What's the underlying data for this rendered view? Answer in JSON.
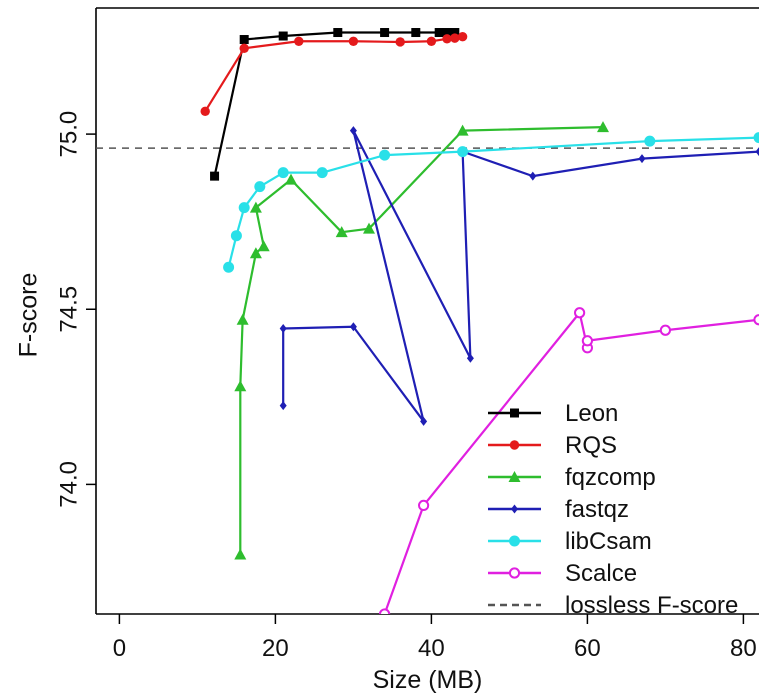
{
  "chart_data": {
    "type": "line",
    "title": "",
    "xlabel": "Size (MB)",
    "ylabel": "F-score",
    "xlim": [
      -3,
      82
    ],
    "ylim": [
      73.63,
      75.36
    ],
    "x_ticks": [
      0,
      20,
      40,
      60,
      80
    ],
    "x_tick_labels": [
      "0",
      "20",
      "40",
      "60",
      "80"
    ],
    "y_ticks": [
      74.0,
      74.5,
      75.0
    ],
    "y_tick_labels": [
      "74.0",
      "74.5",
      "75.0"
    ],
    "grid": false,
    "legend_position": "bottom-right",
    "reference_lines": [
      {
        "name": "lossless F-score",
        "y": 74.96,
        "color": "#555555",
        "style": "dashed"
      }
    ],
    "series": [
      {
        "name": "Leon",
        "color": "#000000",
        "marker": "square",
        "points": [
          {
            "x": 12.2,
            "y": 74.88
          },
          {
            "x": 16.0,
            "y": 75.27
          },
          {
            "x": 21.0,
            "y": 75.28
          },
          {
            "x": 28.0,
            "y": 75.29
          },
          {
            "x": 34.0,
            "y": 75.29
          },
          {
            "x": 38.0,
            "y": 75.29
          },
          {
            "x": 41.0,
            "y": 75.29
          },
          {
            "x": 42.0,
            "y": 75.29
          },
          {
            "x": 43.0,
            "y": 75.29
          }
        ]
      },
      {
        "name": "RQS",
        "color": "#e41a1c",
        "marker": "circle",
        "points": [
          {
            "x": 11.0,
            "y": 75.065
          },
          {
            "x": 16.0,
            "y": 75.245
          },
          {
            "x": 23.0,
            "y": 75.265
          },
          {
            "x": 30.0,
            "y": 75.265
          },
          {
            "x": 36.0,
            "y": 75.263
          },
          {
            "x": 40.0,
            "y": 75.265
          },
          {
            "x": 42.0,
            "y": 75.272
          },
          {
            "x": 43.0,
            "y": 75.274
          },
          {
            "x": 44.0,
            "y": 75.278
          }
        ]
      },
      {
        "name": "fqzcomp",
        "color": "#2ebd2e",
        "marker": "triangle",
        "points": [
          {
            "x": 15.5,
            "y": 73.8
          },
          {
            "x": 15.5,
            "y": 74.28
          },
          {
            "x": 15.8,
            "y": 74.47
          },
          {
            "x": 17.5,
            "y": 74.66
          },
          {
            "x": 18.5,
            "y": 74.68
          },
          {
            "x": 17.5,
            "y": 74.79
          },
          {
            "x": 22.0,
            "y": 74.87
          },
          {
            "x": 28.5,
            "y": 74.72
          },
          {
            "x": 32.0,
            "y": 74.73
          },
          {
            "x": 44.0,
            "y": 75.01
          },
          {
            "x": 62.0,
            "y": 75.02
          }
        ]
      },
      {
        "name": "fastqz",
        "color": "#1f1fb4",
        "marker": "diamond",
        "segments": [
          [
            {
              "x": 21.0,
              "y": 74.225
            },
            {
              "x": 21.0,
              "y": 74.445
            },
            {
              "x": 30.0,
              "y": 74.45
            },
            {
              "x": 39.0,
              "y": 74.18
            },
            {
              "x": 30.0,
              "y": 75.01
            },
            {
              "x": 45.0,
              "y": 74.36
            },
            {
              "x": 44.0,
              "y": 74.95
            },
            {
              "x": 53.0,
              "y": 74.88
            },
            {
              "x": 67.0,
              "y": 74.93
            },
            {
              "x": 82.0,
              "y": 74.95
            }
          ]
        ]
      },
      {
        "name": "libCsam",
        "color": "#29e0e8",
        "marker": "circle-filled",
        "points": [
          {
            "x": 14.0,
            "y": 74.62
          },
          {
            "x": 15.0,
            "y": 74.71
          },
          {
            "x": 16.0,
            "y": 74.79
          },
          {
            "x": 18.0,
            "y": 74.85
          },
          {
            "x": 21.0,
            "y": 74.89
          },
          {
            "x": 26.0,
            "y": 74.89
          },
          {
            "x": 34.0,
            "y": 74.94
          },
          {
            "x": 44.0,
            "y": 74.95
          },
          {
            "x": 68.0,
            "y": 74.98
          },
          {
            "x": 82.0,
            "y": 74.99
          }
        ]
      },
      {
        "name": "Scalce",
        "color": "#e020e0",
        "marker": "open-circle",
        "points": [
          {
            "x": 34.0,
            "y": 73.63
          },
          {
            "x": 39.0,
            "y": 73.94
          },
          {
            "x": 59.0,
            "y": 74.49
          },
          {
            "x": 60.0,
            "y": 74.39
          },
          {
            "x": 60.0,
            "y": 74.41
          },
          {
            "x": 70.0,
            "y": 74.44
          },
          {
            "x": 82.0,
            "y": 74.47
          }
        ]
      }
    ],
    "legend_entries": [
      {
        "label": "Leon",
        "color": "#000000",
        "marker": "square",
        "line": "solid"
      },
      {
        "label": "RQS",
        "color": "#e41a1c",
        "marker": "circle",
        "line": "solid"
      },
      {
        "label": "fqzcomp",
        "color": "#2ebd2e",
        "marker": "triangle",
        "line": "solid"
      },
      {
        "label": "fastqz",
        "color": "#1f1fb4",
        "marker": "diamond",
        "line": "solid"
      },
      {
        "label": "libCsam",
        "color": "#29e0e8",
        "marker": "circle-filled",
        "line": "solid"
      },
      {
        "label": "Scalce",
        "color": "#e020e0",
        "marker": "open-circle",
        "line": "solid"
      },
      {
        "label": "lossless F-score",
        "color": "#555555",
        "marker": "none",
        "line": "dashed"
      }
    ]
  }
}
